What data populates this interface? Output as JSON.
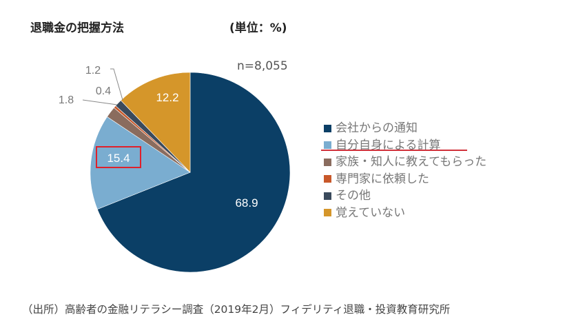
{
  "chart_data": {
    "type": "pie",
    "title": "退職金の把握方法",
    "unit_label": "(単位：%)",
    "sample_size": "n=8,055",
    "categories": [
      "会社からの通知",
      "自分自身による計算",
      "家族・知人に教えてもらった",
      "専門家に依頼した",
      "その他",
      "覚えていない"
    ],
    "values": [
      68.9,
      15.4,
      1.8,
      0.4,
      1.2,
      12.2
    ],
    "value_labels": [
      "68.9",
      "15.4",
      "1.8",
      "0.4",
      "1.2",
      "12.2"
    ],
    "colors": [
      "#0b3f66",
      "#7aadd0",
      "#8a6c5e",
      "#c8582a",
      "#3a4a5c",
      "#d5962a"
    ],
    "legend_position": "right",
    "highlighted": "自分自身による計算"
  },
  "footer": "（出所）高齢者の金融リテラシー調査（2019年2月）フィデリティ退職・投資教育研究所"
}
